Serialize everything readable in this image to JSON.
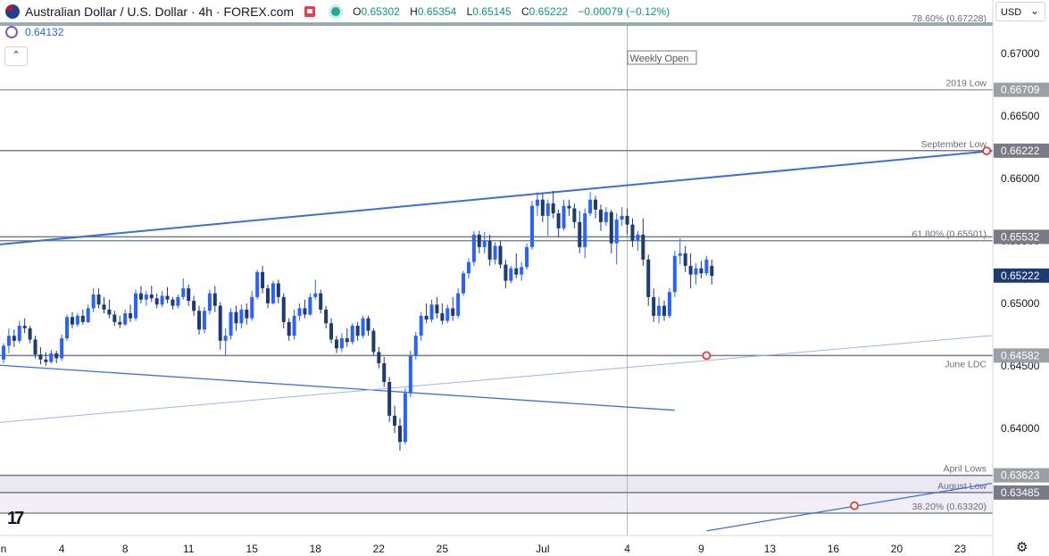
{
  "header": {
    "symbol_title": "Australian Dollar / U.S. Dollar · 4h · FOREX.com",
    "ohlc": [
      {
        "k": "O",
        "v": "0.65302"
      },
      {
        "k": "H",
        "v": "0.65354"
      },
      {
        "k": "L",
        "v": "0.65145"
      },
      {
        "k": "C",
        "v": "0.65222"
      }
    ],
    "change": "−0.00079 (−0.12%)",
    "indicator_value": "0.64132",
    "collapse_glyph": "⌃",
    "currency": "USD"
  },
  "icons": {
    "flag": "aud-usd-flag-icon",
    "alert": "flag-icon",
    "market": "market-open-icon",
    "indicator": "indicator-icon",
    "settings": "gear-icon",
    "logo": "tradingview-logo"
  },
  "logo_text": "17",
  "settings_glyph": "⚙",
  "colors": {
    "candle": "#2962ff",
    "trend": "#3a6fd8",
    "level": "#787b86",
    "fib": "#5b7c84",
    "zone": "#ebe7f3",
    "last": "#1e3a73"
  },
  "chart_data": {
    "type": "candlestick",
    "ylim": [
      0.6317,
      0.6742
    ],
    "y_ticks": [
      "0.67000",
      "0.66500",
      "0.66000",
      "0.65500",
      "0.65000",
      "0.64500",
      "0.64000"
    ],
    "x_ticks": [
      {
        "label": "n",
        "bar": 0
      },
      {
        "label": "4",
        "bar": 11
      },
      {
        "label": "8",
        "bar": 23
      },
      {
        "label": "11",
        "bar": 35
      },
      {
        "label": "15",
        "bar": 47
      },
      {
        "label": "18",
        "bar": 59
      },
      {
        "label": "22",
        "bar": 71
      },
      {
        "label": "25",
        "bar": 83
      },
      {
        "label": "Jul",
        "bar": 102
      },
      {
        "label": "4",
        "bar": 118
      },
      {
        "label": "9",
        "bar": 132
      },
      {
        "label": "13",
        "bar": 145
      },
      {
        "label": "16",
        "bar": 157
      },
      {
        "label": "20",
        "bar": 169
      },
      {
        "label": "23",
        "bar": 181
      }
    ],
    "levels": [
      {
        "name": "fib-786",
        "price": 0.67228,
        "color": "#5b7c84",
        "label": "78.60% (0.67228)",
        "axis": "",
        "axisColor": ""
      },
      {
        "name": "low-2019",
        "price": 0.66709,
        "color": "#9aa0a6",
        "label": "2019 Low",
        "axis": "0.66709",
        "axisColor": "#9aa0a6"
      },
      {
        "name": "september-low",
        "price": 0.66222,
        "color": "#787b86",
        "label": "September Low",
        "axis": "0.66222",
        "axisColor": "#787b86"
      },
      {
        "name": "fib-618",
        "price": 0.65501,
        "color": "#5b7c84",
        "label": "61.80% (0.65501)",
        "axis": "",
        "axisColor": ""
      },
      {
        "name": "level-65532",
        "price": 0.65532,
        "color": "#787b86",
        "label": "",
        "axis": "0.65532",
        "axisColor": "#787b86"
      },
      {
        "name": "june-ldc",
        "price": 0.64582,
        "color": "#787b86",
        "label": "June LDC",
        "axis": "0.64582",
        "axisColor": "#9aa0a6"
      },
      {
        "name": "april-lows",
        "price": 0.63623,
        "color": "#787b86",
        "label": "April Lows",
        "axis": "0.63623",
        "axisColor": "#9aa0a6"
      },
      {
        "name": "august-low",
        "price": 0.63485,
        "color": "#787b86",
        "label": "August Low",
        "axis": "0.63485",
        "axisColor": "#787b86"
      },
      {
        "name": "fib-382",
        "price": 0.6332,
        "color": "#5b7c84",
        "label": "38.20% (0.63320)",
        "axis": "",
        "axisColor": ""
      }
    ],
    "zone": [
      0.63485,
      0.63623
    ],
    "last_price": {
      "value": 0.65222,
      "label": "0.65222"
    },
    "weekly_open": {
      "bar": 118,
      "label": "Weekly Open"
    },
    "trendlines": [
      {
        "name": "upper-channel",
        "from": [
          -2,
          0.65466
        ],
        "to": [
          187,
          0.6622
        ],
        "color": "#3a6fd8",
        "width": 2
      },
      {
        "name": "lower-channel",
        "from": [
          -2,
          0.64508
        ],
        "to": [
          127,
          0.64144
        ],
        "color": "#3a6fd8",
        "width": 1.3
      },
      {
        "name": "inner-support",
        "from": [
          -2,
          0.64042
        ],
        "to": [
          187,
          0.64742
        ],
        "color": "#9bb8ea",
        "width": 1
      },
      {
        "name": "slope-line",
        "from": [
          133,
          0.63178
        ],
        "to": [
          187,
          0.63559
        ],
        "color": "#3a6fd8",
        "width": 1.2
      }
    ],
    "alert_points": [
      {
        "bar": 133,
        "price": 0.64582
      },
      {
        "bar": 161,
        "price": 0.6338
      },
      {
        "bar": 186,
        "price": 0.6622
      }
    ],
    "candles": [
      [
        0.6455,
        0.6468,
        0.6452,
        0.6466
      ],
      [
        0.6466,
        0.648,
        0.646,
        0.6474
      ],
      [
        0.6474,
        0.6479,
        0.6465,
        0.647
      ],
      [
        0.647,
        0.6486,
        0.6468,
        0.6482
      ],
      [
        0.6482,
        0.6488,
        0.6476,
        0.648
      ],
      [
        0.648,
        0.6482,
        0.6468,
        0.6471
      ],
      [
        0.6471,
        0.6474,
        0.6456,
        0.6459
      ],
      [
        0.6459,
        0.6465,
        0.6451,
        0.6455
      ],
      [
        0.6455,
        0.6461,
        0.645,
        0.6453
      ],
      [
        0.6453,
        0.6463,
        0.6452,
        0.646
      ],
      [
        0.646,
        0.6462,
        0.6452,
        0.6456
      ],
      [
        0.6456,
        0.6475,
        0.6454,
        0.6472
      ],
      [
        0.6472,
        0.6491,
        0.647,
        0.6489
      ],
      [
        0.6489,
        0.6493,
        0.648,
        0.6483
      ],
      [
        0.6483,
        0.6492,
        0.6481,
        0.649
      ],
      [
        0.649,
        0.6495,
        0.6483,
        0.6485
      ],
      [
        0.6485,
        0.6499,
        0.6484,
        0.6496
      ],
      [
        0.6496,
        0.6512,
        0.6493,
        0.6507
      ],
      [
        0.6507,
        0.6512,
        0.6496,
        0.6499
      ],
      [
        0.6499,
        0.6505,
        0.6492,
        0.6495
      ],
      [
        0.6495,
        0.6503,
        0.6488,
        0.6491
      ],
      [
        0.6491,
        0.6494,
        0.6482,
        0.6485
      ],
      [
        0.6485,
        0.649,
        0.648,
        0.6483
      ],
      [
        0.6483,
        0.6495,
        0.6482,
        0.6492
      ],
      [
        0.6492,
        0.6499,
        0.6485,
        0.6488
      ],
      [
        0.6488,
        0.6511,
        0.6486,
        0.6508
      ],
      [
        0.6508,
        0.6514,
        0.65,
        0.6503
      ],
      [
        0.6503,
        0.651,
        0.6498,
        0.6507
      ],
      [
        0.6507,
        0.6514,
        0.6501,
        0.6504
      ],
      [
        0.6504,
        0.6508,
        0.6496,
        0.6499
      ],
      [
        0.6499,
        0.651,
        0.6497,
        0.6506
      ],
      [
        0.6506,
        0.6513,
        0.65,
        0.6503
      ],
      [
        0.6503,
        0.6505,
        0.6495,
        0.6498
      ],
      [
        0.6498,
        0.6507,
        0.6496,
        0.6505
      ],
      [
        0.6505,
        0.652,
        0.6503,
        0.6512
      ],
      [
        0.6512,
        0.6515,
        0.6498,
        0.6502
      ],
      [
        0.6502,
        0.6506,
        0.649,
        0.6494
      ],
      [
        0.6494,
        0.6498,
        0.6475,
        0.6479
      ],
      [
        0.6479,
        0.6497,
        0.6476,
        0.6494
      ],
      [
        0.6494,
        0.6511,
        0.6491,
        0.6508
      ],
      [
        0.6508,
        0.6514,
        0.6493,
        0.6498
      ],
      [
        0.6498,
        0.6501,
        0.6463,
        0.647
      ],
      [
        0.647,
        0.648,
        0.6458,
        0.6474
      ],
      [
        0.6474,
        0.6496,
        0.6471,
        0.6493
      ],
      [
        0.6493,
        0.6498,
        0.6478,
        0.6484
      ],
      [
        0.6484,
        0.6499,
        0.648,
        0.6495
      ],
      [
        0.6495,
        0.65,
        0.6483,
        0.6488
      ],
      [
        0.6488,
        0.651,
        0.6486,
        0.6505
      ],
      [
        0.6505,
        0.6527,
        0.6503,
        0.6525
      ],
      [
        0.6525,
        0.653,
        0.6508,
        0.6512
      ],
      [
        0.6512,
        0.6515,
        0.6496,
        0.65
      ],
      [
        0.65,
        0.6518,
        0.6499,
        0.6516
      ],
      [
        0.6516,
        0.6519,
        0.65,
        0.6505
      ],
      [
        0.6505,
        0.6508,
        0.648,
        0.6485
      ],
      [
        0.6485,
        0.6488,
        0.647,
        0.6474
      ],
      [
        0.6474,
        0.6495,
        0.6471,
        0.649
      ],
      [
        0.649,
        0.65,
        0.6486,
        0.6496
      ],
      [
        0.6496,
        0.6503,
        0.6488,
        0.6491
      ],
      [
        0.6491,
        0.6508,
        0.649,
        0.6505
      ],
      [
        0.6505,
        0.6519,
        0.6503,
        0.6508
      ],
      [
        0.6508,
        0.6511,
        0.6492,
        0.6495
      ],
      [
        0.6495,
        0.6498,
        0.648,
        0.6484
      ],
      [
        0.6484,
        0.6488,
        0.6468,
        0.6471
      ],
      [
        0.6471,
        0.6474,
        0.646,
        0.6464
      ],
      [
        0.6464,
        0.6476,
        0.6461,
        0.6472
      ],
      [
        0.6472,
        0.648,
        0.6465,
        0.6469
      ],
      [
        0.6469,
        0.6484,
        0.6467,
        0.6482
      ],
      [
        0.6482,
        0.6485,
        0.647,
        0.6474
      ],
      [
        0.6474,
        0.649,
        0.6472,
        0.6488
      ],
      [
        0.6488,
        0.649,
        0.6474,
        0.6478
      ],
      [
        0.6478,
        0.648,
        0.6458,
        0.6461
      ],
      [
        0.6461,
        0.6465,
        0.6448,
        0.6452
      ],
      [
        0.6452,
        0.6457,
        0.6433,
        0.6437
      ],
      [
        0.6437,
        0.6441,
        0.6405,
        0.641
      ],
      [
        0.641,
        0.6418,
        0.6396,
        0.6402
      ],
      [
        0.6402,
        0.6408,
        0.6382,
        0.6389
      ],
      [
        0.6389,
        0.6432,
        0.6387,
        0.6428
      ],
      [
        0.6428,
        0.6462,
        0.6425,
        0.6458
      ],
      [
        0.6458,
        0.6477,
        0.6455,
        0.6474
      ],
      [
        0.6474,
        0.6493,
        0.647,
        0.649
      ],
      [
        0.649,
        0.65,
        0.6484,
        0.6487
      ],
      [
        0.6487,
        0.6503,
        0.6485,
        0.6499
      ],
      [
        0.6499,
        0.6505,
        0.6488,
        0.6492
      ],
      [
        0.6492,
        0.65,
        0.6483,
        0.6486
      ],
      [
        0.6486,
        0.6499,
        0.6484,
        0.6496
      ],
      [
        0.6496,
        0.6505,
        0.6486,
        0.649
      ],
      [
        0.649,
        0.6512,
        0.6488,
        0.6508
      ],
      [
        0.6508,
        0.6526,
        0.6506,
        0.6524
      ],
      [
        0.6524,
        0.6536,
        0.652,
        0.6533
      ],
      [
        0.6533,
        0.6558,
        0.653,
        0.6555
      ],
      [
        0.6555,
        0.6558,
        0.654,
        0.6545
      ],
      [
        0.6545,
        0.6557,
        0.654,
        0.655
      ],
      [
        0.655,
        0.6555,
        0.653,
        0.6535
      ],
      [
        0.6535,
        0.6549,
        0.6531,
        0.6546
      ],
      [
        0.6546,
        0.655,
        0.6528,
        0.6531
      ],
      [
        0.6531,
        0.6535,
        0.6512,
        0.6518
      ],
      [
        0.6518,
        0.653,
        0.6516,
        0.6528
      ],
      [
        0.6528,
        0.654,
        0.652,
        0.6523
      ],
      [
        0.6523,
        0.6533,
        0.6518,
        0.6529
      ],
      [
        0.6529,
        0.6548,
        0.6527,
        0.6545
      ],
      [
        0.6545,
        0.6582,
        0.6543,
        0.6578
      ],
      [
        0.6578,
        0.6589,
        0.657,
        0.6583
      ],
      [
        0.6583,
        0.6588,
        0.6565,
        0.657
      ],
      [
        0.657,
        0.6583,
        0.6554,
        0.658
      ],
      [
        0.658,
        0.659,
        0.6568,
        0.6572
      ],
      [
        0.6572,
        0.6575,
        0.6553,
        0.656
      ],
      [
        0.656,
        0.6583,
        0.6558,
        0.6578
      ],
      [
        0.6578,
        0.6583,
        0.657,
        0.6576
      ],
      [
        0.6576,
        0.658,
        0.656,
        0.6565
      ],
      [
        0.6565,
        0.6574,
        0.654,
        0.6545
      ],
      [
        0.6545,
        0.6576,
        0.6536,
        0.6572
      ],
      [
        0.6572,
        0.6589,
        0.657,
        0.6583
      ],
      [
        0.6583,
        0.6586,
        0.6568,
        0.6575
      ],
      [
        0.6575,
        0.6579,
        0.6558,
        0.6565
      ],
      [
        0.6565,
        0.6577,
        0.6562,
        0.6573
      ],
      [
        0.6573,
        0.6575,
        0.654,
        0.6548
      ],
      [
        0.6548,
        0.6572,
        0.6531,
        0.6567
      ],
      [
        0.6567,
        0.6577,
        0.6562,
        0.657
      ],
      [
        0.657,
        0.6576,
        0.6555,
        0.6563
      ],
      [
        0.6563,
        0.6568,
        0.6545,
        0.655
      ],
      [
        0.655,
        0.6558,
        0.6542,
        0.6555
      ],
      [
        0.6555,
        0.6568,
        0.653,
        0.6535
      ],
      [
        0.6535,
        0.6539,
        0.6498,
        0.6505
      ],
      [
        0.6505,
        0.6512,
        0.6485,
        0.649
      ],
      [
        0.649,
        0.6505,
        0.6484,
        0.6498
      ],
      [
        0.6498,
        0.6502,
        0.6486,
        0.649
      ],
      [
        0.649,
        0.6512,
        0.6488,
        0.6509
      ],
      [
        0.6509,
        0.6542,
        0.6505,
        0.6538
      ],
      [
        0.6538,
        0.6552,
        0.6531,
        0.654
      ],
      [
        0.654,
        0.6546,
        0.6525,
        0.653
      ],
      [
        0.653,
        0.654,
        0.6512,
        0.6523
      ],
      [
        0.6523,
        0.6532,
        0.6515,
        0.6528
      ],
      [
        0.6528,
        0.6534,
        0.652,
        0.6524
      ],
      [
        0.6524,
        0.6538,
        0.6522,
        0.6535
      ],
      [
        0.653,
        0.6535,
        0.6515,
        0.6522
      ]
    ]
  }
}
